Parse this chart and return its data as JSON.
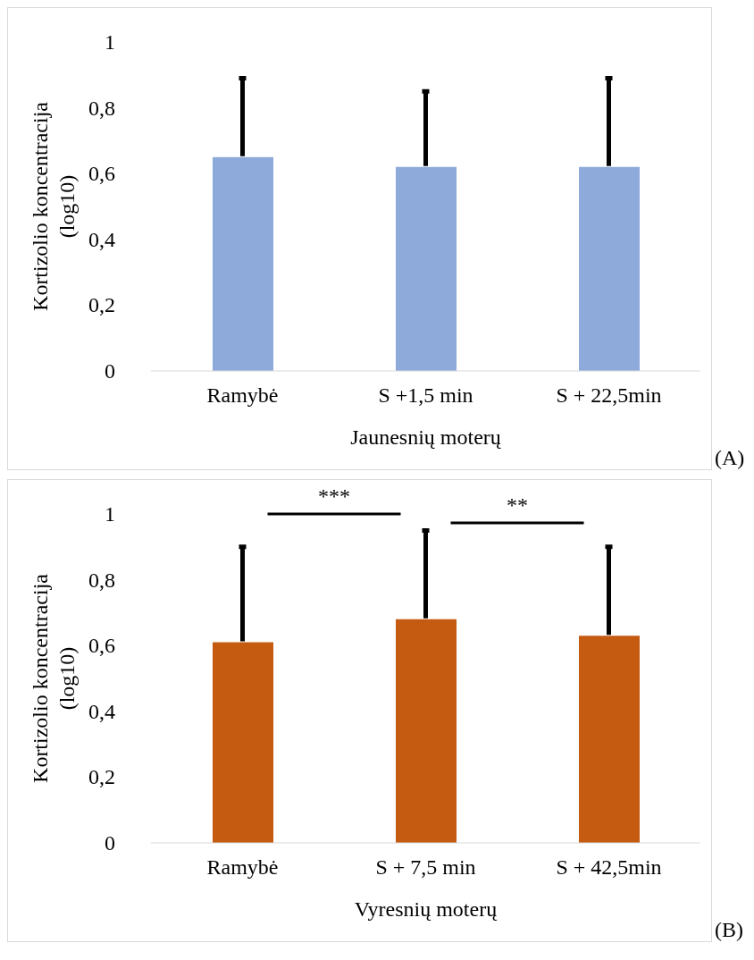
{
  "chart_data": [
    {
      "type": "bar",
      "xlabel": "Jaunesnių moterų",
      "ylabel": "Kortizolio koncentracija (log10)",
      "categories": [
        "Ramybė",
        "S +1,5 min",
        "S + 22,5min"
      ],
      "values": [
        0.65,
        0.62,
        0.62
      ],
      "color": "#8eaadb",
      "errors": [
        [
          0.65,
          0.89
        ],
        [
          0.62,
          0.85
        ],
        [
          0.62,
          0.89
        ]
      ],
      "ylim": [
        0,
        1
      ],
      "yticks": [
        {
          "value": 0,
          "label": "0"
        },
        {
          "value": 0.2,
          "label": "0,2"
        },
        {
          "value": 0.4,
          "label": "0,4"
        },
        {
          "value": 0.6,
          "label": "0,6"
        },
        {
          "value": 0.8,
          "label": "0,8"
        },
        {
          "value": 1,
          "label": "1"
        }
      ],
      "grid": false,
      "legend": false,
      "annotations": [
        "(A)"
      ]
    },
    {
      "type": "bar",
      "xlabel": "Vyresnių moterų",
      "ylabel": "Kortizolio koncentracija (log10)",
      "categories": [
        "Ramybė",
        "S + 7,5 min",
        "S + 42,5min"
      ],
      "values": [
        0.61,
        0.68,
        0.63
      ],
      "color": "#c55a11",
      "errors": [
        [
          0.61,
          0.9
        ],
        [
          0.68,
          0.95
        ],
        [
          0.63,
          0.9
        ]
      ],
      "ylim": [
        0,
        1
      ],
      "yticks": [
        {
          "value": 0,
          "label": "0"
        },
        {
          "value": 0.2,
          "label": "0,2"
        },
        {
          "value": 0.4,
          "label": "0,4"
        },
        {
          "value": 0.6,
          "label": "0,6"
        },
        {
          "value": 0.8,
          "label": "0,8"
        },
        {
          "value": 1,
          "label": "1"
        }
      ],
      "grid": false,
      "legend": false,
      "annotations": [
        "(B)",
        "***",
        "**"
      ]
    }
  ]
}
